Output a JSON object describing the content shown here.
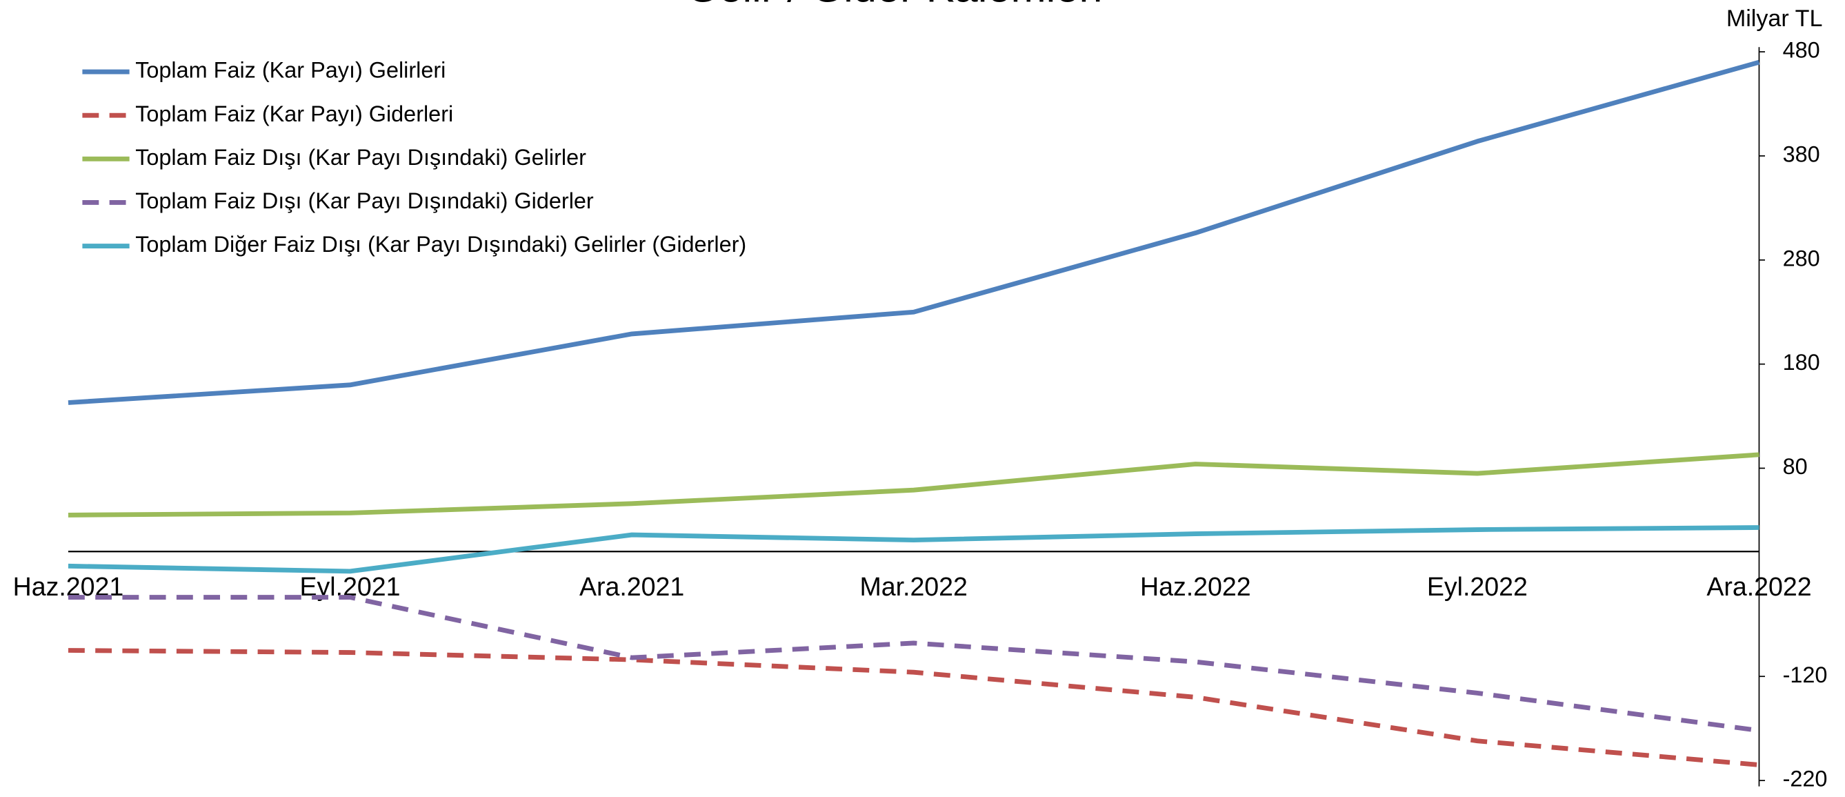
{
  "chart_data": {
    "type": "line",
    "title": "Gelir / Gider Kalemleri",
    "y_axis_label": "Milyar TL",
    "categories": [
      "Haz.2021",
      "Eyl.2021",
      "Ara.2021",
      "Mar.2022",
      "Haz.2022",
      "Eyl.2022",
      "Ara.2022"
    ],
    "series": [
      {
        "name": "Toplam Faiz (Kar Payı) Gelirleri",
        "color": "#4f81bd",
        "line_style": "solid",
        "values": [
          143,
          160,
          209,
          230,
          306,
          394,
          470
        ]
      },
      {
        "name": "Toplam Faiz (Kar Payı) Giderleri",
        "color": "#c0504d",
        "line_style": "dashed",
        "values": [
          -95,
          -97,
          -104,
          -116,
          -140,
          -182,
          -205
        ]
      },
      {
        "name": "Toplam Faiz Dışı (Kar Payı Dışındaki) Gelirler",
        "color": "#9bbb59",
        "line_style": "solid",
        "values": [
          35,
          37,
          46,
          59,
          84,
          75,
          93
        ]
      },
      {
        "name": "Toplam Faiz Dışı (Kar Payı Dışındaki) Giderler",
        "color": "#8064a2",
        "line_style": "dashed",
        "values": [
          -44,
          -44,
          -102,
          -88,
          -106,
          -136,
          -172
        ]
      },
      {
        "name": "Toplam Diğer Faiz Dışı (Kar Payı Dışındaki) Gelirler (Giderler)",
        "color": "#4bacc6",
        "line_style": "solid",
        "values": [
          -14,
          -19,
          16,
          11,
          17,
          21,
          23
        ]
      }
    ],
    "ylim": [
      -220,
      480
    ],
    "yticks": [
      -220,
      -120,
      80,
      180,
      280,
      380,
      480
    ],
    "y_axis_position": "right",
    "legend": "upper left"
  }
}
